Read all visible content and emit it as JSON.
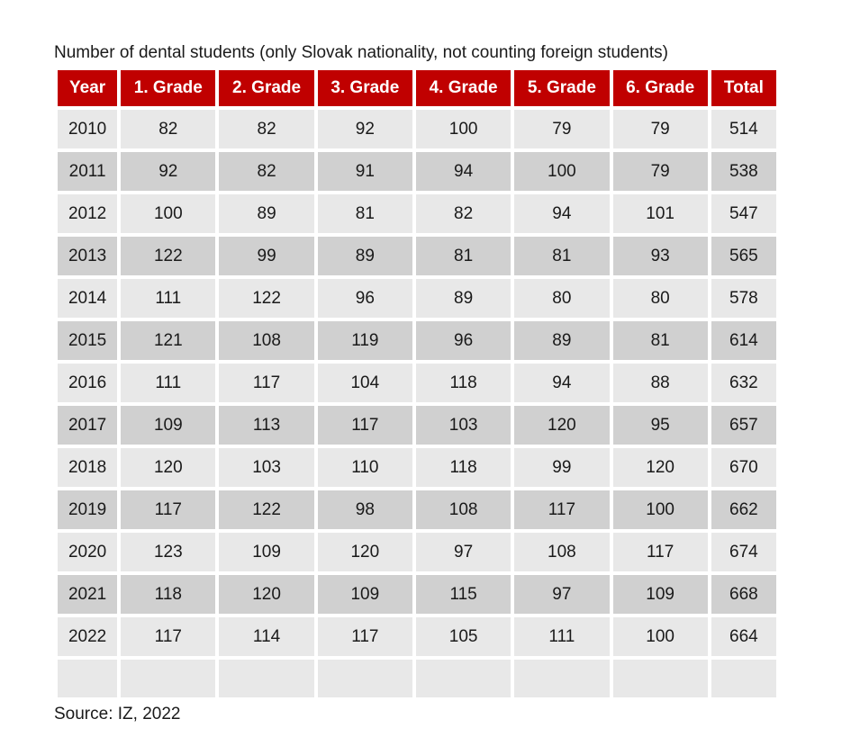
{
  "title": "Number of dental students (only Slovak nationality, not counting foreign students)",
  "headers": [
    "Year",
    "1. Grade",
    "2. Grade",
    "3. Grade",
    "4. Grade",
    "5. Grade",
    "6. Grade",
    "Total"
  ],
  "rows": [
    [
      "2010",
      "82",
      "82",
      "92",
      "100",
      "79",
      "79",
      "514"
    ],
    [
      "2011",
      "92",
      "82",
      "91",
      "94",
      "100",
      "79",
      "538"
    ],
    [
      "2012",
      "100",
      "89",
      "81",
      "82",
      "94",
      "101",
      "547"
    ],
    [
      "2013",
      "122",
      "99",
      "89",
      "81",
      "81",
      "93",
      "565"
    ],
    [
      "2014",
      "111",
      "122",
      "96",
      "89",
      "80",
      "80",
      "578"
    ],
    [
      "2015",
      "121",
      "108",
      "119",
      "96",
      "89",
      "81",
      "614"
    ],
    [
      "2016",
      "111",
      "117",
      "104",
      "118",
      "94",
      "88",
      "632"
    ],
    [
      "2017",
      "109",
      "113",
      "117",
      "103",
      "120",
      "95",
      "657"
    ],
    [
      "2018",
      "120",
      "103",
      "110",
      "118",
      "99",
      "120",
      "670"
    ],
    [
      "2019",
      "117",
      "122",
      "98",
      "108",
      "117",
      "100",
      "662"
    ],
    [
      "2020",
      "123",
      "109",
      "120",
      "97",
      "108",
      "117",
      "674"
    ],
    [
      "2021",
      "118",
      "120",
      "109",
      "115",
      "97",
      "109",
      "668"
    ],
    [
      "2022",
      "117",
      "114",
      "117",
      "105",
      "111",
      "100",
      "664"
    ]
  ],
  "source": "Source: IZ, 2022",
  "colors": {
    "header_bg": "#c00000",
    "header_text": "#ffffff",
    "row_light": "#e8e8e8",
    "row_dark": "#d0d0d0"
  }
}
